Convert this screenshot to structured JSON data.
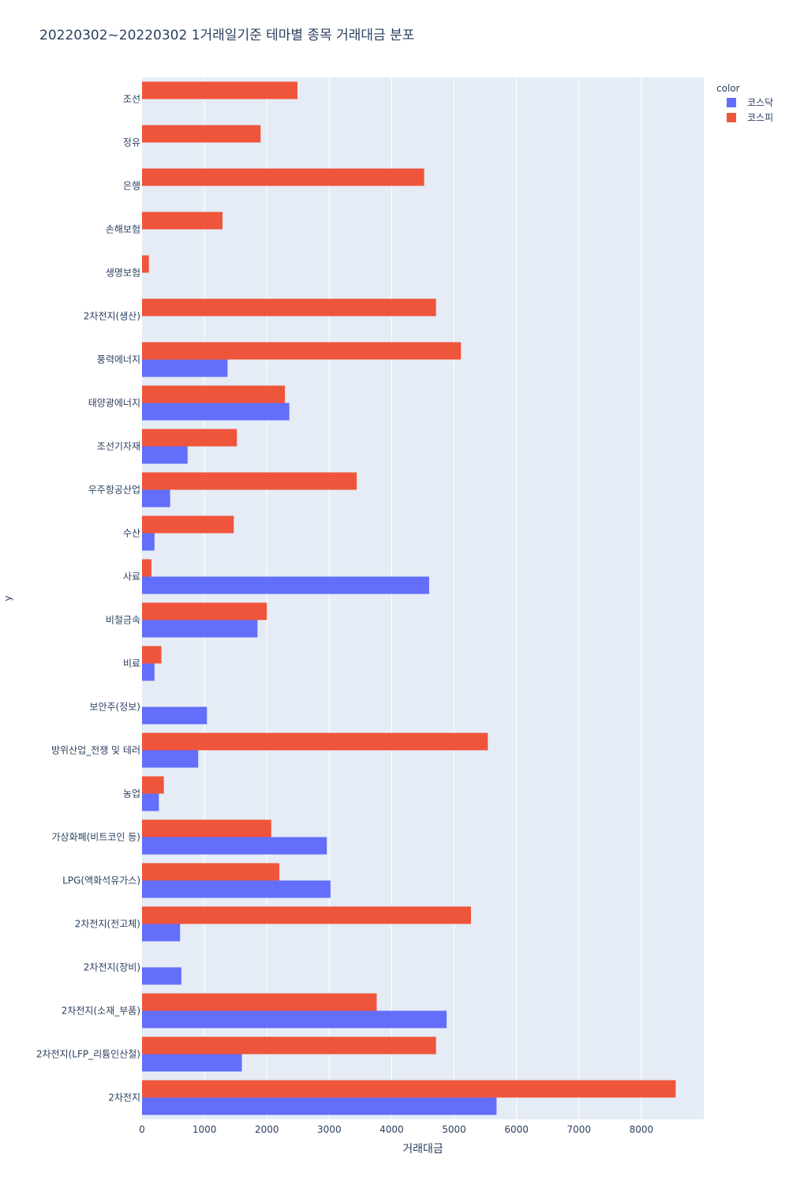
{
  "title": "20220302~20220302 1거래일기준 테마별 종목 거래대금 분포",
  "chart_data": {
    "type": "bar",
    "orientation": "horizontal",
    "barmode": "group",
    "title": "20220302~20220302 1거래일기준 테마별 종목 거래대금 분포",
    "xlabel": "거래대금",
    "ylabel": "y",
    "xlim": [
      0,
      9000
    ],
    "x_ticks": [
      0,
      1000,
      2000,
      3000,
      4000,
      5000,
      6000,
      7000,
      8000
    ],
    "grid": true,
    "legend_title": "color",
    "legend_position": "top-right",
    "categories": [
      "조선",
      "정유",
      "은행",
      "손해보험",
      "생명보험",
      "2차전지(생산)",
      "풍력에너지",
      "태양광에너지",
      "조선기자재",
      "우주항공산업",
      "수산",
      "사료",
      "비철금속",
      "비료",
      "보안주(정보)",
      "방위산업_전쟁 및 테러",
      "농업",
      "가상화폐(비트코인 등)",
      "LPG(액화석유가스)",
      "2차전지(전고체)",
      "2차전지(장비)",
      "2차전지(소재_부품)",
      "2차전지(LFP_리튬인산철)",
      "2차전지"
    ],
    "series": [
      {
        "name": "코스닥",
        "color": "#636efa",
        "values": [
          null,
          null,
          null,
          null,
          null,
          null,
          1370,
          2360,
          730,
          450,
          200,
          4600,
          1850,
          200,
          1040,
          900,
          270,
          2960,
          3020,
          610,
          630,
          4880,
          1600,
          5680
        ]
      },
      {
        "name": "코스피",
        "color": "#ef553b",
        "values": [
          2490,
          1900,
          4520,
          1290,
          110,
          4710,
          5110,
          2290,
          1520,
          3440,
          1470,
          150,
          2000,
          310,
          null,
          5540,
          350,
          2070,
          2200,
          5270,
          null,
          3760,
          4710,
          8550
        ]
      }
    ]
  }
}
